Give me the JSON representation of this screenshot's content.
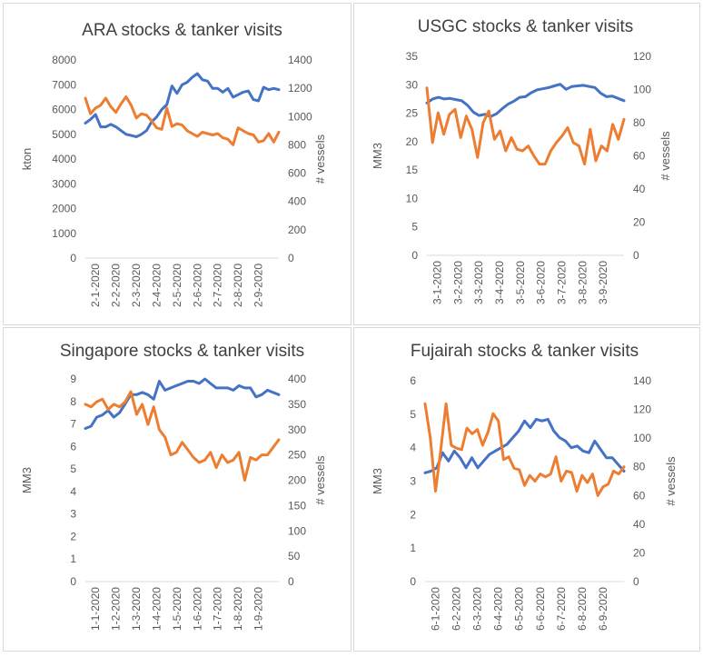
{
  "colors": {
    "stocks": "#4472C4",
    "visits": "#ED7D31",
    "axis_text": "#595959",
    "title": "#404040",
    "axis_line": "#d9d9d9"
  },
  "chart_data": [
    {
      "type": "line",
      "title": "ARA stocks & tanker visits",
      "ylabel": "kton",
      "y2label": "# vessels",
      "ylim": [
        0,
        8000
      ],
      "y2lim": [
        0,
        1400
      ],
      "yticks": [
        "0",
        "1000",
        "2000",
        "3000",
        "4000",
        "5000",
        "6000",
        "7000",
        "8000"
      ],
      "y2ticks": [
        "0",
        "200",
        "400",
        "600",
        "800",
        "1000",
        "1200",
        "1400"
      ],
      "xticks": [
        "2-1-2020",
        "2-2-2020",
        "2-3-2020",
        "2-4-2020",
        "2-5-2020",
        "2-6-2020",
        "2-7-2020",
        "2-8-2020",
        "2-9-2020"
      ],
      "grid": false,
      "series": [
        {
          "axis": "left",
          "values": [
            5450,
            5600,
            5800,
            5300,
            5300,
            5400,
            5300,
            5150,
            5000,
            4950,
            4900,
            5000,
            5150,
            5500,
            5700,
            6000,
            6200,
            6950,
            6650,
            7000,
            7100,
            7300,
            7450,
            7200,
            7150,
            6850,
            6850,
            6700,
            6850,
            6500,
            6600,
            6700,
            6750,
            6400,
            6350,
            6900,
            6800,
            6850,
            6800
          ]
        },
        {
          "axis": "right",
          "values": [
            1130,
            1020,
            1060,
            1080,
            1130,
            1070,
            1030,
            1090,
            1140,
            1080,
            990,
            1020,
            1010,
            970,
            920,
            910,
            1060,
            930,
            950,
            940,
            900,
            880,
            860,
            890,
            880,
            870,
            880,
            850,
            840,
            800,
            920,
            900,
            880,
            870,
            820,
            830,
            880,
            820,
            890
          ]
        }
      ]
    },
    {
      "type": "line",
      "title": "USGC stocks & tanker visits",
      "ylabel": "MM3",
      "y2label": "# vessels",
      "ylim": [
        0,
        35
      ],
      "y2lim": [
        0,
        120
      ],
      "yticks": [
        "0",
        "5",
        "10",
        "15",
        "20",
        "25",
        "30",
        "35"
      ],
      "y2ticks": [
        "0",
        "20",
        "40",
        "60",
        "80",
        "100",
        "120"
      ],
      "xticks": [
        "3-1-2020",
        "3-2-2020",
        "3-3-2020",
        "3-4-2020",
        "3-5-2020",
        "3-6-2020",
        "3-7-2020",
        "3-8-2020",
        "3-9-2020"
      ],
      "grid": false,
      "series": [
        {
          "axis": "left",
          "values": [
            26.8,
            27.5,
            27.8,
            27.5,
            27.6,
            27.4,
            27.2,
            26.4,
            25.2,
            24.6,
            24.8,
            24.4,
            24.9,
            25.8,
            26.6,
            27.1,
            27.8,
            27.9,
            28.6,
            29.1,
            29.3,
            29.5,
            29.8,
            30.1,
            29.2,
            29.7,
            29.8,
            29.9,
            29.7,
            29.5,
            28.5,
            27.9,
            28.0,
            27.6,
            27.2
          ]
        },
        {
          "axis": "right",
          "values": [
            101,
            68,
            86,
            73,
            85,
            88,
            71,
            84,
            76,
            59,
            80,
            87,
            70,
            75,
            63,
            71,
            64,
            63,
            66,
            60,
            55,
            55,
            63,
            68,
            72,
            77,
            68,
            66,
            55,
            76,
            57,
            66,
            63,
            79,
            70,
            82
          ]
        }
      ]
    },
    {
      "type": "line",
      "title": "Singapore stocks & tanker visits",
      "ylabel": "MM3",
      "y2label": "# vessels",
      "ylim": [
        0,
        9
      ],
      "y2lim": [
        0,
        400
      ],
      "yticks": [
        "0",
        "1",
        "2",
        "3",
        "4",
        "5",
        "6",
        "7",
        "8",
        "9"
      ],
      "y2ticks": [
        "0",
        "50",
        "100",
        "150",
        "200",
        "250",
        "300",
        "350",
        "400"
      ],
      "xticks": [
        "1-1-2020",
        "1-2-2020",
        "1-3-2020",
        "1-4-2020",
        "1-5-2020",
        "1-6-2020",
        "1-7-2020",
        "1-8-2020",
        "1-9-2020"
      ],
      "grid": false,
      "series": [
        {
          "axis": "left",
          "values": [
            6.8,
            6.9,
            7.3,
            7.4,
            7.6,
            7.3,
            7.5,
            7.9,
            8.3,
            8.3,
            8.4,
            8.3,
            8.1,
            8.9,
            8.5,
            8.6,
            8.7,
            8.8,
            8.9,
            8.9,
            8.8,
            9.0,
            8.8,
            8.6,
            8.6,
            8.6,
            8.5,
            8.7,
            8.6,
            8.6,
            8.2,
            8.3,
            8.5,
            8.4,
            8.3
          ]
        },
        {
          "axis": "right",
          "values": [
            350,
            345,
            355,
            360,
            340,
            350,
            345,
            355,
            375,
            330,
            350,
            310,
            345,
            300,
            285,
            250,
            255,
            275,
            260,
            245,
            235,
            240,
            255,
            225,
            250,
            235,
            240,
            255,
            200,
            245,
            240,
            250,
            250,
            265,
            280
          ]
        }
      ]
    },
    {
      "type": "line",
      "title": "Fujairah stocks & tanker visits",
      "ylabel": "MM3",
      "y2label": "# vessels",
      "ylim": [
        0,
        6
      ],
      "y2lim": [
        0,
        140
      ],
      "yticks": [
        "0",
        "1",
        "2",
        "3",
        "4",
        "5",
        "6"
      ],
      "y2ticks": [
        "0",
        "20",
        "40",
        "60",
        "80",
        "100",
        "120",
        "140"
      ],
      "xticks": [
        "6-1-2020",
        "6-2-2020",
        "6-3-2020",
        "6-4-2020",
        "6-5-2020",
        "6-6-2020",
        "6-7-2020",
        "6-8-2020",
        "6-9-2020"
      ],
      "grid": false,
      "series": [
        {
          "axis": "left",
          "values": [
            3.25,
            3.3,
            3.4,
            3.85,
            3.6,
            3.9,
            3.7,
            3.4,
            3.7,
            3.4,
            3.6,
            3.8,
            3.9,
            4.0,
            4.1,
            4.3,
            4.5,
            4.8,
            4.6,
            4.85,
            4.8,
            4.85,
            4.5,
            4.3,
            4.2,
            4.0,
            4.05,
            3.9,
            3.85,
            4.2,
            3.95,
            3.7,
            3.7,
            3.5,
            3.3
          ]
        },
        {
          "axis": "right",
          "values": [
            124,
            100,
            63,
            92,
            124,
            95,
            93,
            92,
            107,
            103,
            106,
            95,
            104,
            117,
            112,
            85,
            87,
            79,
            78,
            67,
            74,
            70,
            75,
            73,
            75,
            87,
            70,
            77,
            76,
            63,
            74,
            69,
            75,
            60,
            66,
            68,
            77,
            75,
            80
          ]
        }
      ]
    }
  ]
}
